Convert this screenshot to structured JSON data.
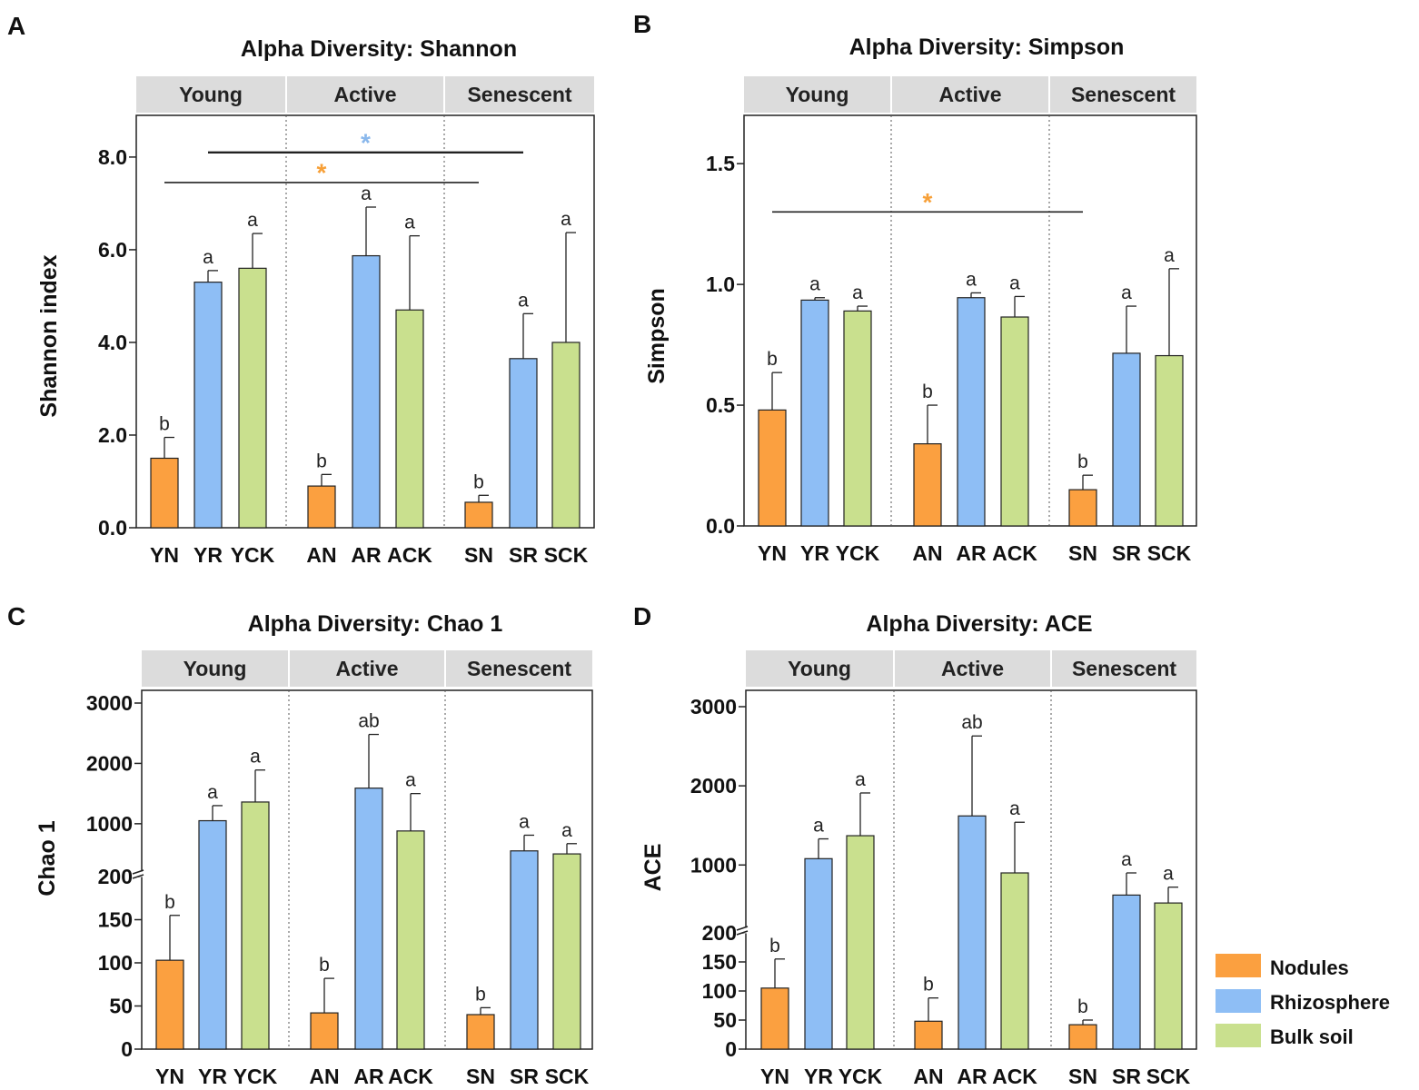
{
  "colors": {
    "Nodules": "#FBA040",
    "Rhizosphere": "#8EBEF5",
    "Bulk soil": "#C9E08E",
    "star_orange": "#F7A038",
    "star_blue": "#8AB8EC",
    "header_bg": "#DCDCDC"
  },
  "legend": {
    "items": [
      {
        "label": "Nodules",
        "color": "#FBA040"
      },
      {
        "label": "Rhizosphere",
        "color": "#8EBEF5"
      },
      {
        "label": "Bulk soil",
        "color": "#C9E08E"
      }
    ]
  },
  "chart_data": [
    {
      "panel": "A",
      "type": "bar",
      "title": "Alpha Diversity: Shannon",
      "ylabel": "Shannon index",
      "groups": [
        "Young",
        "Active",
        "Senescent"
      ],
      "categories": [
        "YN",
        "YR",
        "YCK",
        "AN",
        "AR",
        "ACK",
        "SN",
        "SR",
        "SCK"
      ],
      "values": [
        1.5,
        5.3,
        5.6,
        0.9,
        5.87,
        4.7,
        0.55,
        3.65,
        4.0
      ],
      "errors": [
        0.45,
        0.25,
        0.75,
        0.25,
        1.05,
        1.6,
        0.15,
        0.97,
        2.37
      ],
      "letters": [
        "b",
        "a",
        "a",
        "b",
        "a",
        "a",
        "b",
        "a",
        "a"
      ],
      "ylim": [
        0,
        8.9
      ],
      "yticks": [
        0,
        2,
        4,
        6,
        8
      ],
      "ytick_labels": [
        "0.0",
        "2.0",
        "4.0",
        "6.0",
        "8.0"
      ],
      "comparisons": [
        {
          "from": "YR",
          "to": "SR",
          "y": 8.1,
          "mark": "*",
          "color": "blue"
        },
        {
          "from": "YN",
          "to": "SN",
          "y": 7.45,
          "mark": "*",
          "color": "orange"
        }
      ]
    },
    {
      "panel": "B",
      "type": "bar",
      "title": "Alpha Diversity: Simpson",
      "ylabel": "Simpson",
      "groups": [
        "Young",
        "Active",
        "Senescent"
      ],
      "categories": [
        "YN",
        "YR",
        "YCK",
        "AN",
        "AR",
        "ACK",
        "SN",
        "SR",
        "SCK"
      ],
      "values": [
        0.48,
        0.935,
        0.89,
        0.34,
        0.945,
        0.865,
        0.15,
        0.715,
        0.705
      ],
      "errors": [
        0.155,
        0.01,
        0.02,
        0.16,
        0.02,
        0.085,
        0.06,
        0.195,
        0.36
      ],
      "letters": [
        "b",
        "a",
        "a",
        "b",
        "a",
        "a",
        "b",
        "a",
        "a"
      ],
      "ylim": [
        0,
        1.7
      ],
      "yticks": [
        0,
        0.5,
        1,
        1.5
      ],
      "ytick_labels": [
        "0.0",
        "0.5",
        "1.0",
        "1.5"
      ],
      "comparisons": [
        {
          "from": "YN",
          "to": "SN",
          "y": 1.3,
          "mark": "*",
          "color": "orange"
        }
      ]
    },
    {
      "panel": "C",
      "type": "bar",
      "title": "Alpha Diversity: Chao 1",
      "ylabel": "Chao 1",
      "groups": [
        "Young",
        "Active",
        "Senescent"
      ],
      "categories": [
        "YN",
        "YR",
        "YCK",
        "AN",
        "AR",
        "ACK",
        "SN",
        "SR",
        "SCK"
      ],
      "values": [
        103,
        1050,
        1360,
        42,
        1590,
        880,
        40,
        550,
        500
      ],
      "errors": [
        52,
        250,
        530,
        40,
        890,
        620,
        8,
        260,
        170
      ],
      "letters": [
        "b",
        "a",
        "a",
        "b",
        "ab",
        "a",
        "b",
        "a",
        "a"
      ],
      "axis_break": 200,
      "yticks": [
        0,
        50,
        100,
        150,
        200,
        1000,
        2000,
        3000
      ],
      "ytick_labels": [
        "0",
        "50",
        "100",
        "150",
        "200",
        "1000",
        "2000",
        "3000"
      ],
      "comparisons": []
    },
    {
      "panel": "D",
      "type": "bar",
      "title": "Alpha Diversity: ACE",
      "ylabel": "ACE",
      "groups": [
        "Young",
        "Active",
        "Senescent"
      ],
      "categories": [
        "YN",
        "YR",
        "YCK",
        "AN",
        "AR",
        "ACK",
        "SN",
        "SR",
        "SCK"
      ],
      "values": [
        105,
        1080,
        1370,
        48,
        1620,
        900,
        42,
        620,
        520
      ],
      "errors": [
        50,
        250,
        540,
        40,
        1010,
        640,
        8,
        280,
        200
      ],
      "letters": [
        "b",
        "a",
        "a",
        "b",
        "ab",
        "a",
        "b",
        "a",
        "a"
      ],
      "axis_break": 200,
      "yticks": [
        0,
        50,
        100,
        150,
        200,
        1000,
        2000,
        3000
      ],
      "ytick_labels": [
        "0",
        "50",
        "100",
        "150",
        "200",
        "1000",
        "2000",
        "3000"
      ],
      "comparisons": []
    }
  ]
}
